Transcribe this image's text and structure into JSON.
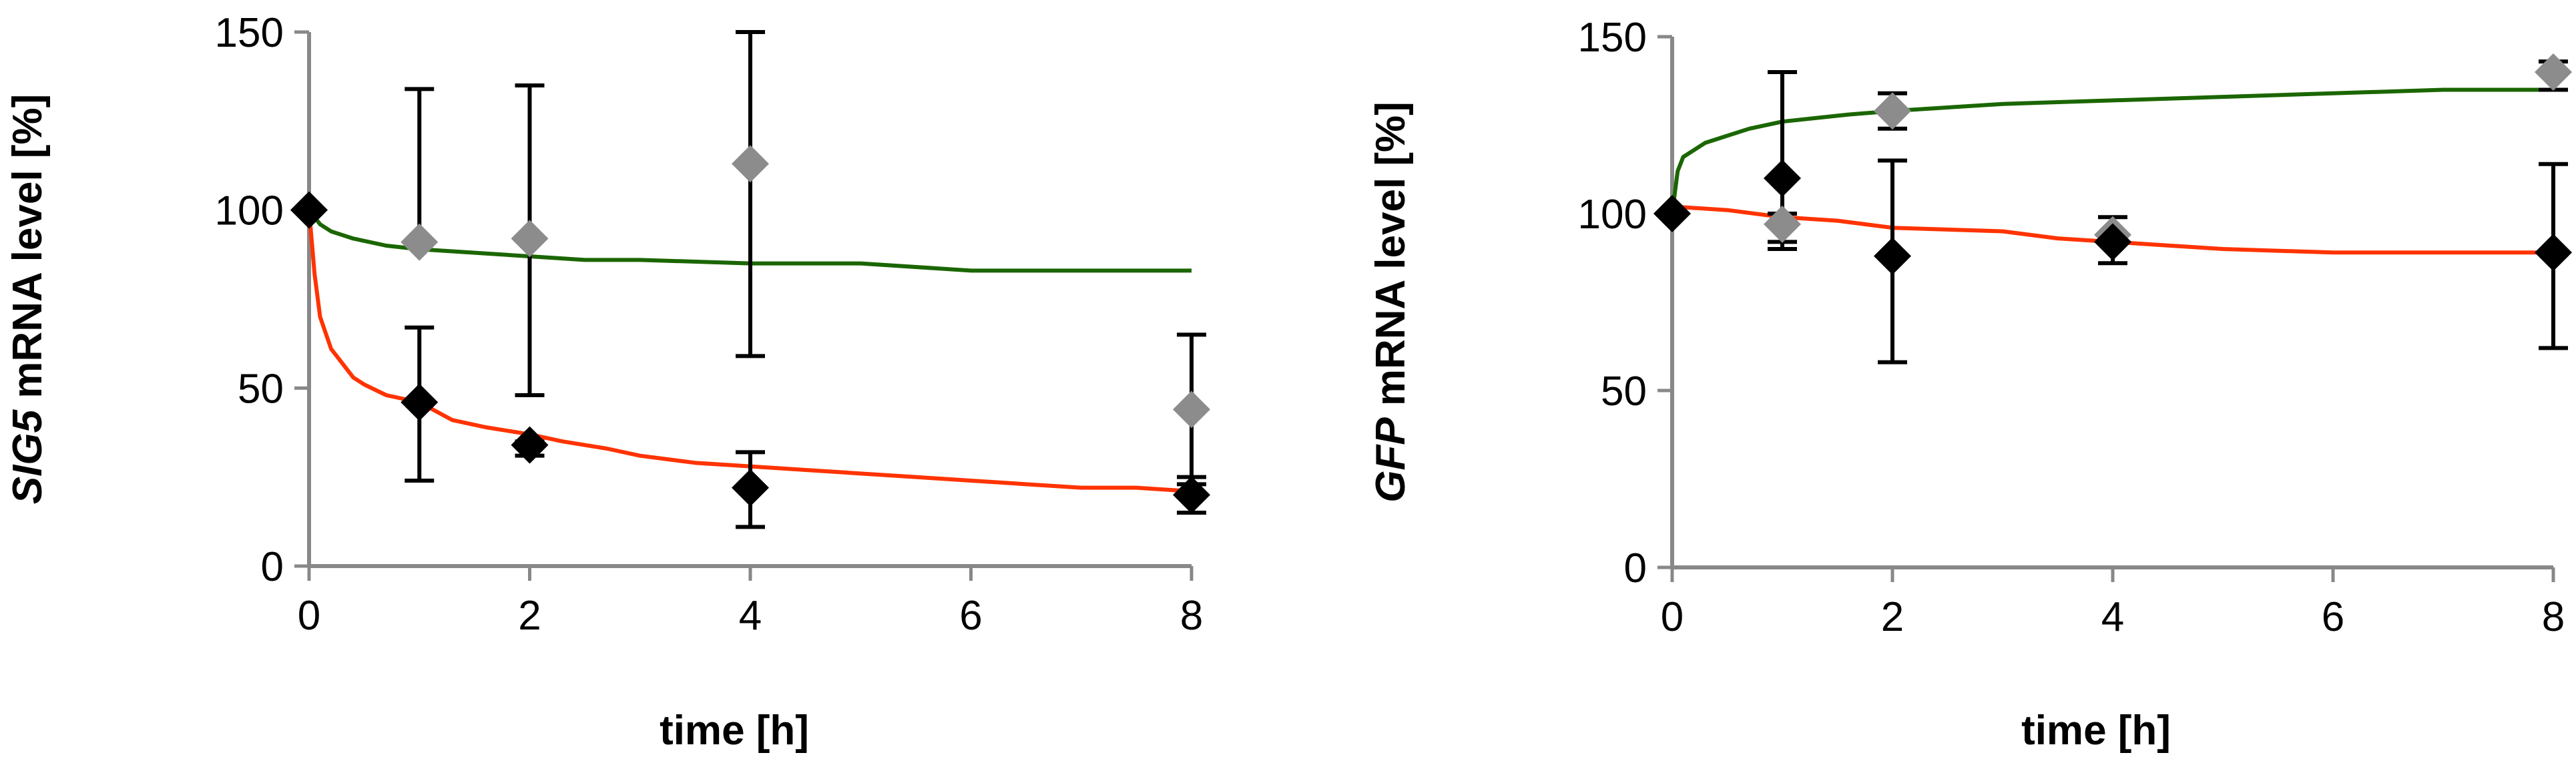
{
  "chart_data": [
    {
      "type": "scatter",
      "xlabel": "time [h]",
      "ylabel_italic": "SIG5",
      "ylabel_rest": " mRNA level [%]",
      "xlim": [
        0,
        8
      ],
      "ylim": [
        0,
        150
      ],
      "xticks": [
        "0",
        "2",
        "4",
        "6",
        "8"
      ],
      "yticks": [
        "0",
        "50",
        "100",
        "150"
      ],
      "grid": false,
      "points": [
        {
          "color": "#000000",
          "x": [
            0,
            1,
            2,
            4,
            8
          ],
          "y": [
            100,
            46,
            34,
            22,
            20
          ],
          "err_low": [
            0,
            22,
            3,
            11,
            5
          ],
          "err_high": [
            0,
            21,
            1,
            10,
            5
          ]
        },
        {
          "color": "#8c8c8c",
          "x": [
            0,
            1,
            2,
            4,
            8
          ],
          "y": [
            100,
            91,
            92,
            113,
            44
          ],
          "err_low": [
            0,
            0,
            44,
            54,
            21
          ],
          "err_high": [
            0,
            43,
            43,
            37,
            21
          ]
        }
      ],
      "lines": [
        {
          "color": "#ff3300",
          "x": [
            0,
            0.05,
            0.1,
            0.2,
            0.3,
            0.4,
            0.5,
            0.7,
            1,
            1.3,
            1.6,
            2,
            2.3,
            2.7,
            3,
            3.5,
            4,
            4.5,
            5,
            5.5,
            6,
            6.5,
            7,
            7.5,
            8
          ],
          "y": [
            100,
            82,
            70,
            61,
            57,
            53,
            51,
            48,
            46,
            41,
            39,
            37,
            35,
            33,
            31,
            29,
            28,
            27,
            26,
            25,
            24,
            23,
            22,
            22,
            21
          ]
        },
        {
          "color": "#1a6600",
          "x": [
            0,
            0.1,
            0.2,
            0.4,
            0.7,
            1,
            1.5,
            2,
            2.5,
            3,
            4,
            5,
            6,
            7,
            8
          ],
          "y": [
            100,
            96,
            94,
            92,
            90,
            89,
            88,
            87,
            86,
            86,
            85,
            85,
            83,
            83,
            83
          ]
        }
      ]
    },
    {
      "type": "scatter",
      "xlabel": "time [h]",
      "ylabel_italic": "GFP",
      "ylabel_rest": " mRNA level [%]",
      "xlim": [
        0,
        8
      ],
      "ylim": [
        0,
        150
      ],
      "xticks": [
        "0",
        "2",
        "4",
        "6",
        "8"
      ],
      "yticks": [
        "0",
        "50",
        "100",
        "150"
      ],
      "grid": false,
      "points": [
        {
          "color": "#000000",
          "x": [
            0,
            1,
            2,
            4,
            8
          ],
          "y": [
            100,
            110,
            88,
            92,
            89
          ],
          "err_low": [
            0,
            20,
            30,
            6,
            27
          ],
          "err_high": [
            0,
            30,
            27,
            7,
            25
          ]
        },
        {
          "color": "#8c8c8c",
          "x": [
            0,
            1,
            2,
            4,
            8
          ],
          "y": [
            100,
            97,
            129,
            94,
            140
          ],
          "err_low": [
            0,
            5,
            5,
            0,
            5
          ],
          "err_high": [
            0,
            3,
            5,
            0,
            3
          ]
        }
      ],
      "lines": [
        {
          "color": "#ff3300",
          "x": [
            0,
            0.5,
            1,
            1.5,
            2,
            3,
            3.5,
            4,
            4.5,
            5,
            6,
            7,
            8
          ],
          "y": [
            102,
            101,
            99,
            98,
            96,
            95,
            93,
            92,
            91,
            90,
            89,
            89,
            89
          ]
        },
        {
          "color": "#1a6600",
          "x": [
            0,
            0.05,
            0.1,
            0.2,
            0.3,
            0.5,
            0.7,
            1,
            1.3,
            1.6,
            2,
            2.5,
            3,
            4,
            5,
            6,
            7,
            8
          ],
          "y": [
            100,
            112,
            116,
            118,
            120,
            122,
            124,
            126,
            127,
            128,
            129,
            130,
            131,
            132,
            133,
            134,
            135,
            135
          ]
        }
      ]
    }
  ]
}
